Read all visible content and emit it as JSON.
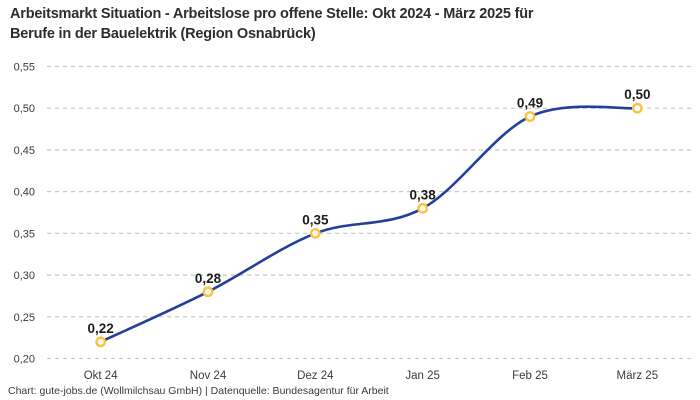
{
  "header": {
    "title_line1": "Arbeitsmarkt Situation - Arbeitslose pro offene Stelle: Okt 2024 - März 2025 für",
    "title_line2": "Berufe in der Bauelektrik (Region Osnabrück)"
  },
  "footer": {
    "credit": "Chart: gute-jobs.de (Wollmilchsau GmbH) | Datenquelle: Bundesagentur für Arbeit"
  },
  "chart_data": {
    "type": "line",
    "title": "Arbeitsmarkt Situation - Arbeitslose pro offene Stelle: Okt 2024 - März 2025 für Berufe in der Bauelektrik (Region Osnabrück)",
    "categories": [
      "Okt 24",
      "Nov 24",
      "Dez 24",
      "Jan 25",
      "Feb 25",
      "März 25"
    ],
    "values": [
      0.22,
      0.28,
      0.35,
      0.38,
      0.49,
      0.5
    ],
    "value_labels": [
      "0,22",
      "0,28",
      "0,35",
      "0,38",
      "0,49",
      "0,50"
    ],
    "ylim": [
      0.2,
      0.55
    ],
    "ytick_step": 0.05,
    "ytick_labels": [
      "0,20",
      "0,25",
      "0,30",
      "0,35",
      "0,40",
      "0,45",
      "0,50",
      "0,55"
    ],
    "xlabel": "",
    "ylabel": "",
    "grid": "horizontal-dashed",
    "legend": "none",
    "line_color": "#22409a",
    "marker_color": "#fdc13c",
    "grid_color": "#c9c9c9",
    "background_color": "#ffffff"
  }
}
